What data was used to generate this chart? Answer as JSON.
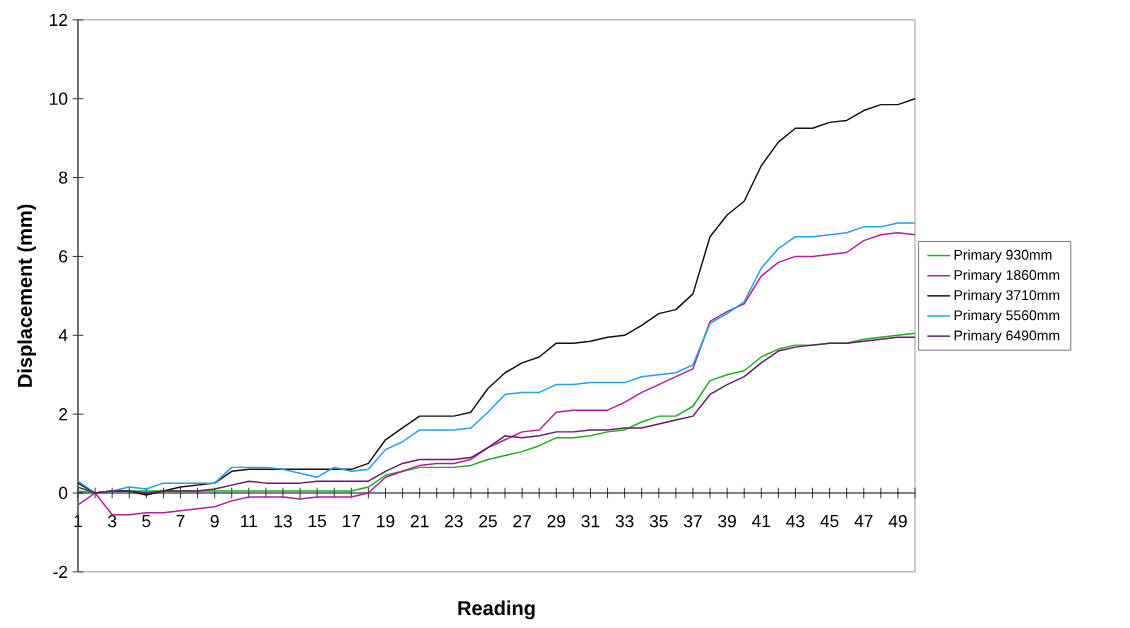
{
  "chart_data": {
    "type": "line",
    "xlabel": "Reading",
    "ylabel": "Displacement (mm)",
    "categories": [
      "1",
      null,
      "3",
      null,
      "5",
      null,
      "7",
      null,
      "9",
      null,
      "11",
      null,
      "13",
      null,
      "15",
      null,
      "17",
      null,
      "19",
      null,
      "21",
      null,
      "23",
      null,
      "25",
      null,
      "27",
      null,
      "29",
      null,
      "31",
      null,
      "33",
      null,
      "35",
      null,
      "37",
      null,
      "39",
      null,
      "41",
      null,
      "43",
      null,
      "45",
      null,
      "47",
      null,
      "49",
      null
    ],
    "ylim": [
      -2,
      12
    ],
    "yticks": [
      -2,
      0,
      2,
      4,
      6,
      8,
      10,
      12
    ],
    "grid": false,
    "legend": "right",
    "marker": "none",
    "line_style": "solid",
    "series": [
      {
        "name": "Primary 930mm",
        "color": "#22aa22",
        "values": [
          0.05,
          0.0,
          0.05,
          0.05,
          0.05,
          0.05,
          0.05,
          0.05,
          0.05,
          0.05,
          0.05,
          0.05,
          0.05,
          0.05,
          0.05,
          0.05,
          0.05,
          0.15,
          0.45,
          0.55,
          0.65,
          0.65,
          0.65,
          0.7,
          0.85,
          0.95,
          1.05,
          1.2,
          1.4,
          1.4,
          1.45,
          1.55,
          1.6,
          1.8,
          1.95,
          1.95,
          2.2,
          2.85,
          3.0,
          3.1,
          3.45,
          3.65,
          3.75,
          3.75,
          3.8,
          3.8,
          3.9,
          3.95,
          4.0,
          4.05
        ]
      },
      {
        "name": "Primary 1860mm",
        "color": "#b0209a",
        "values": [
          -0.3,
          0.0,
          -0.55,
          -0.55,
          -0.5,
          -0.5,
          -0.45,
          -0.4,
          -0.35,
          -0.2,
          -0.1,
          -0.1,
          -0.1,
          -0.15,
          -0.1,
          -0.1,
          -0.1,
          0.0,
          0.4,
          0.55,
          0.7,
          0.75,
          0.75,
          0.85,
          1.15,
          1.35,
          1.55,
          1.6,
          2.05,
          2.1,
          2.1,
          2.1,
          2.3,
          2.55,
          2.75,
          2.95,
          3.15,
          4.35,
          4.6,
          4.8,
          5.5,
          5.85,
          6.0,
          6.0,
          6.05,
          6.1,
          6.4,
          6.55,
          6.6,
          6.55
        ]
      },
      {
        "name": "Primary 3710mm",
        "color": "#111111",
        "values": [
          0.25,
          0.0,
          0.05,
          0.05,
          -0.05,
          0.05,
          0.15,
          0.2,
          0.25,
          0.55,
          0.6,
          0.6,
          0.6,
          0.6,
          0.6,
          0.6,
          0.6,
          0.75,
          1.35,
          1.65,
          1.95,
          1.95,
          1.95,
          2.05,
          2.65,
          3.05,
          3.3,
          3.45,
          3.8,
          3.8,
          3.85,
          3.95,
          4.0,
          4.25,
          4.55,
          4.65,
          5.05,
          6.5,
          7.05,
          7.4,
          8.3,
          8.9,
          9.25,
          9.25,
          9.4,
          9.45,
          9.7,
          9.85,
          9.85,
          10.0
        ]
      },
      {
        "name": "Primary 5560mm",
        "color": "#22a0e0",
        "values": [
          0.3,
          0.0,
          0.05,
          0.15,
          0.1,
          0.25,
          0.25,
          0.25,
          0.25,
          0.65,
          0.65,
          0.65,
          0.6,
          0.5,
          0.4,
          0.65,
          0.55,
          0.6,
          1.1,
          1.3,
          1.6,
          1.6,
          1.6,
          1.65,
          2.05,
          2.5,
          2.55,
          2.55,
          2.75,
          2.75,
          2.8,
          2.8,
          2.8,
          2.95,
          3.0,
          3.05,
          3.25,
          4.3,
          4.55,
          4.85,
          5.7,
          6.2,
          6.5,
          6.5,
          6.55,
          6.6,
          6.75,
          6.75,
          6.85,
          6.85
        ]
      },
      {
        "name": "Primary 6490mm",
        "color": "#602060",
        "values": [
          0.15,
          0.0,
          0.05,
          0.05,
          0.0,
          0.05,
          0.05,
          0.05,
          0.1,
          0.2,
          0.3,
          0.25,
          0.25,
          0.25,
          0.3,
          0.3,
          0.3,
          0.3,
          0.55,
          0.75,
          0.85,
          0.85,
          0.85,
          0.9,
          1.15,
          1.45,
          1.4,
          1.45,
          1.55,
          1.55,
          1.6,
          1.6,
          1.65,
          1.65,
          1.75,
          1.85,
          1.95,
          2.5,
          2.75,
          2.95,
          3.3,
          3.6,
          3.7,
          3.75,
          3.8,
          3.8,
          3.85,
          3.9,
          3.95,
          3.95
        ]
      }
    ]
  }
}
